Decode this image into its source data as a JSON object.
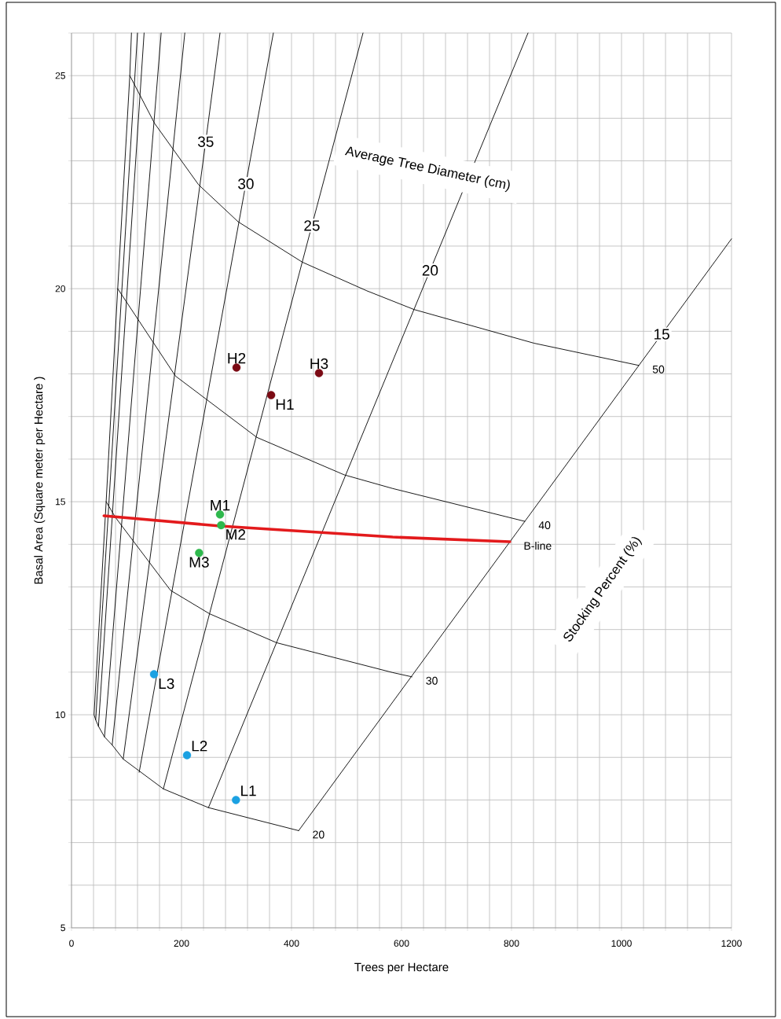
{
  "chart_data": {
    "type": "line",
    "xlabel": "Trees per Hectare",
    "ylabel": "Basal Area (Square meter per Hectare )",
    "xlim": [
      0,
      1200
    ],
    "ylim": [
      5,
      26
    ],
    "xticks": [
      0,
      {
        "value": 40,
        "label": null
      },
      {
        "value": 80,
        "label": null
      },
      {
        "value": 120,
        "label": null
      },
      {
        "value": 160,
        "label": null
      },
      200,
      {
        "value": 240,
        "label": null
      },
      {
        "value": 280,
        "label": null
      },
      {
        "value": 320,
        "label": null
      },
      {
        "value": 360,
        "label": null
      },
      400,
      {
        "value": 440,
        "label": null
      },
      {
        "value": 480,
        "label": null
      },
      {
        "value": 520,
        "label": null
      },
      {
        "value": 560,
        "label": null
      },
      600,
      {
        "value": 640,
        "label": null
      },
      {
        "value": 680,
        "label": null
      },
      {
        "value": 720,
        "label": null
      },
      {
        "value": 760,
        "label": null
      },
      800,
      {
        "value": 840,
        "label": null
      },
      {
        "value": 880,
        "label": null
      },
      {
        "value": 920,
        "label": null
      },
      {
        "value": 960,
        "label": null
      },
      1000,
      {
        "value": 1040,
        "label": null
      },
      {
        "value": 1080,
        "label": null
      },
      {
        "value": 1120,
        "label": null
      },
      {
        "value": 1160,
        "label": null
      },
      1200
    ],
    "yticks": [
      5,
      {
        "value": 6,
        "label": null
      },
      {
        "value": 7,
        "label": null
      },
      {
        "value": 8,
        "label": null
      },
      {
        "value": 9,
        "label": null
      },
      10,
      {
        "value": 11,
        "label": null
      },
      {
        "value": 12,
        "label": null
      },
      {
        "value": 13,
        "label": null
      },
      {
        "value": 14,
        "label": null
      },
      15,
      {
        "value": 16,
        "label": null
      },
      {
        "value": 17,
        "label": null
      },
      {
        "value": 18,
        "label": null
      },
      {
        "value": 19,
        "label": null
      },
      20,
      {
        "value": 21,
        "label": null
      },
      {
        "value": 22,
        "label": null
      },
      {
        "value": 23,
        "label": null
      },
      {
        "value": 24,
        "label": null
      },
      25,
      {
        "value": 26,
        "label": null
      }
    ],
    "grid": true,
    "annotations": [
      "Average Tree Diameter (cm)",
      "Stocking Percent (%)"
    ],
    "series": [
      {
        "type": "line",
        "name": "50",
        "color": "#000000",
        "x": [
          106,
          151,
          231,
          303,
          420,
          537,
          623,
          841,
          1031
        ],
        "values": [
          25,
          23.88,
          22.44,
          21.57,
          20.62,
          19.95,
          19.51,
          18.72,
          18.2
        ]
      },
      {
        "type": "line",
        "name": "40",
        "color": "#000000",
        "x": [
          84,
          189,
          337,
          496,
          584,
          824
        ],
        "values": [
          20,
          17.95,
          16.51,
          15.63,
          15.31,
          14.54
        ]
      },
      {
        "type": "line",
        "name": "30",
        "color": "#000000",
        "x": [
          63,
          80,
          180,
          251,
          373,
          584,
          619
        ],
        "values": [
          15,
          14.63,
          12.92,
          12.37,
          11.69,
          10.99,
          10.89
        ]
      },
      {
        "name": "20",
        "color": "#000000",
        "x": [
          109,
          106,
          84,
          63,
          41,
          44,
          49,
          60,
          74,
          94,
          167,
          249,
          413
        ],
        "values": [
          26,
          25,
          20,
          15,
          10,
          9.88,
          9.73,
          9.48,
          9.29,
          8.96,
          8.26,
          7.82,
          7.28
        ]
      },
      {
        "type": "line",
        "color": "#000000",
        "x": [
          44,
          120
        ],
        "values": [
          9.88,
          26
        ]
      },
      {
        "type": "line",
        "color": "#000000",
        "x": [
          49,
          132
        ],
        "values": [
          9.73,
          26
        ]
      },
      {
        "type": "line",
        "color": "#000000",
        "x": [
          60,
          163
        ],
        "values": [
          9.48,
          26
        ]
      },
      {
        "type": "line",
        "color": "#000000",
        "x": [
          74,
          206
        ],
        "values": [
          9.29,
          26
        ]
      },
      {
        "type": "line",
        "name": "35",
        "color": "#000000",
        "x": [
          94,
          244,
          270
        ],
        "values": [
          8.96,
          23.45,
          26
        ]
      },
      {
        "type": "line",
        "name": "30",
        "color": "#000000",
        "x": [
          123,
          317,
          367
        ],
        "values": [
          8.65,
          22.46,
          26
        ]
      },
      {
        "type": "line",
        "name": "25",
        "color": "#000000",
        "x": [
          167,
          437,
          530
        ],
        "values": [
          8.26,
          21.48,
          26
        ]
      },
      {
        "type": "line",
        "name": "20",
        "color": "#000000",
        "x": [
          249,
          652,
          830
        ],
        "values": [
          7.82,
          20.43,
          26
        ]
      },
      {
        "type": "line",
        "name": "15",
        "color": "#000000",
        "x": [
          413,
          1073,
          1200
        ],
        "values": [
          7.28,
          18.93,
          21.17
        ]
      },
      {
        "type": "line",
        "name": "B-line",
        "color": "#e31a1c",
        "x": [
          59,
          270,
          584,
          797
        ],
        "values": [
          14.67,
          14.43,
          14.17,
          14.06
        ]
      },
      {
        "type": "scatter",
        "name": "H1",
        "color": "#7b0a14",
        "x": [
          363
        ],
        "values": [
          17.5
        ]
      },
      {
        "type": "scatter",
        "name": "H2",
        "color": "#7b0a14",
        "x": [
          300
        ],
        "values": [
          18.15
        ]
      },
      {
        "type": "scatter",
        "name": "H3",
        "color": "#7b0a14",
        "x": [
          450
        ],
        "values": [
          18.02
        ]
      },
      {
        "type": "scatter",
        "name": "M1",
        "color": "#2eb84c",
        "x": [
          270
        ],
        "values": [
          14.7
        ]
      },
      {
        "type": "scatter",
        "name": "M2",
        "color": "#2eb84c",
        "x": [
          272
        ],
        "values": [
          14.45
        ]
      },
      {
        "type": "scatter",
        "name": "M3",
        "color": "#2eb84c",
        "x": [
          232
        ],
        "values": [
          13.8
        ]
      },
      {
        "type": "scatter",
        "name": "L1",
        "color": "#1ba1e2",
        "x": [
          299
        ],
        "values": [
          8
        ]
      },
      {
        "type": "scatter",
        "name": "L2",
        "color": "#1ba1e2",
        "x": [
          210
        ],
        "values": [
          9.05
        ]
      },
      {
        "type": "scatter",
        "name": "L3",
        "color": "#1ba1e2",
        "x": [
          150
        ],
        "values": [
          10.95
        ]
      }
    ]
  }
}
